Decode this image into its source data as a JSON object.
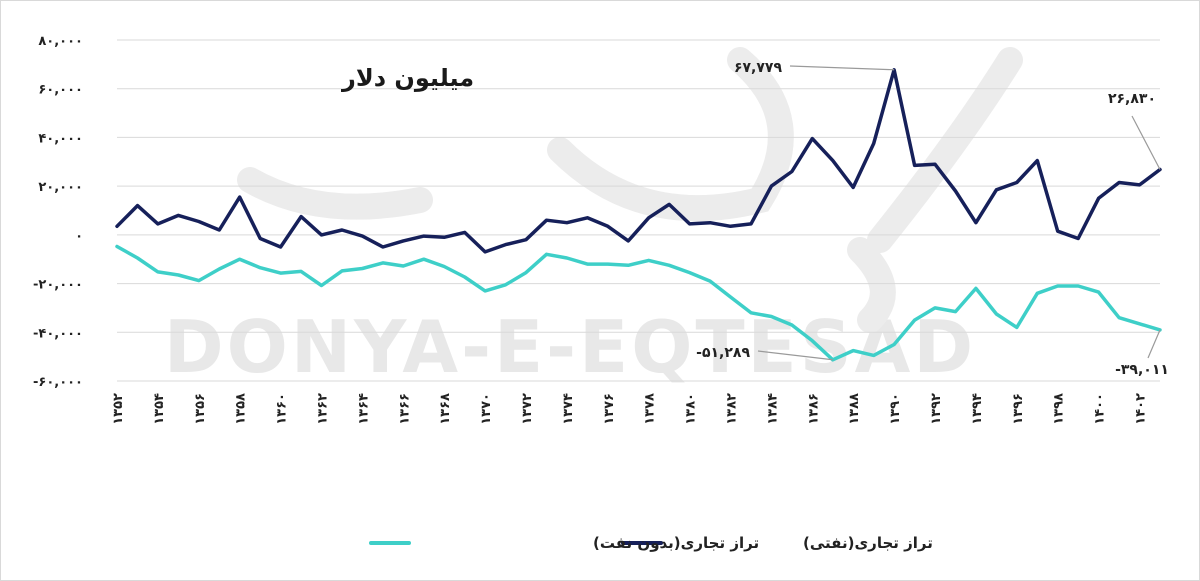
{
  "chart_data": {
    "type": "line",
    "unit_label": "میلیون دلار",
    "watermark": "DONYA-E-EQTESAD",
    "colors": {
      "non_oil": "#3ecfc8",
      "oil": "#16205a",
      "grid": "#d9d9d9",
      "axis_text": "#222222"
    },
    "ylim": [
      -60000,
      80000
    ],
    "yticks": [
      80000,
      60000,
      40000,
      20000,
      0,
      -20000,
      -40000,
      -60000
    ],
    "ytick_labels": [
      "۸۰,۰۰۰",
      "۶۰,۰۰۰",
      "۴۰,۰۰۰",
      "۲۰,۰۰۰",
      "۰",
      "-۲۰,۰۰۰",
      "-۴۰,۰۰۰",
      "-۶۰,۰۰۰"
    ],
    "x": [
      1352,
      1353,
      1354,
      1355,
      1356,
      1357,
      1358,
      1359,
      1360,
      1361,
      1362,
      1363,
      1364,
      1365,
      1366,
      1367,
      1368,
      1369,
      1370,
      1371,
      1372,
      1373,
      1374,
      1375,
      1376,
      1377,
      1378,
      1379,
      1380,
      1381,
      1382,
      1383,
      1384,
      1385,
      1386,
      1387,
      1388,
      1389,
      1390,
      1391,
      1392,
      1393,
      1394,
      1395,
      1396,
      1397,
      1398,
      1399,
      1400,
      1401,
      1402,
      1403
    ],
    "xticks": [
      1352,
      1354,
      1356,
      1358,
      1360,
      1362,
      1364,
      1366,
      1368,
      1370,
      1372,
      1374,
      1376,
      1378,
      1380,
      1382,
      1384,
      1386,
      1388,
      1390,
      1392,
      1394,
      1396,
      1398,
      1400,
      1402
    ],
    "xtick_labels": [
      "۱۳۵۲",
      "۱۳۵۴",
      "۱۳۵۶",
      "۱۳۵۸",
      "۱۳۶۰",
      "۱۳۶۲",
      "۱۳۶۴",
      "۱۳۶۶",
      "۱۳۶۸",
      "۱۳۷۰",
      "۱۳۷۲",
      "۱۳۷۴",
      "۱۳۷۶",
      "۱۳۷۸",
      "۱۳۸۰",
      "۱۳۸۲",
      "۱۳۸۴",
      "۱۳۸۶",
      "۱۳۸۸",
      "۱۳۹۰",
      "۱۳۹۲",
      "۱۳۹۴",
      "۱۳۹۶",
      "۱۳۹۸",
      "۱۴۰۰",
      "۱۴۰۲"
    ],
    "series": [
      {
        "key": "non_oil",
        "name": "تراز تجاری(بدون نفت)",
        "values": [
          -4800,
          -9500,
          -15200,
          -16500,
          -18800,
          -14000,
          -10000,
          -13500,
          -15700,
          -15000,
          -20800,
          -14800,
          -13800,
          -11500,
          -12800,
          -10000,
          -13000,
          -17300,
          -23000,
          -20500,
          -15500,
          -8000,
          -9500,
          -12000,
          -12000,
          -12500,
          -10500,
          -12500,
          -15500,
          -19000,
          -25500,
          -32000,
          -33500,
          -37000,
          -43500,
          -51289,
          -47500,
          -49500,
          -45000,
          -35000,
          -30000,
          -31500,
          -22000,
          -32500,
          -38000,
          -24000,
          -21000,
          -21000,
          -23500,
          -34000,
          -36500,
          -39011
        ]
      },
      {
        "key": "oil",
        "name": "تراز تجاری(نفتی)",
        "values": [
          3500,
          12000,
          4500,
          8000,
          5500,
          2000,
          15500,
          -1500,
          -5000,
          7500,
          0,
          2000,
          -500,
          -5000,
          -2500,
          -500,
          -1000,
          1000,
          -7000,
          -4000,
          -2000,
          6000,
          5000,
          7000,
          3500,
          -2500,
          7000,
          12500,
          4500,
          5000,
          3500,
          4500,
          20000,
          26000,
          39500,
          30500,
          19500,
          37500,
          67779,
          28500,
          29000,
          18000,
          5000,
          18500,
          21500,
          30500,
          1500,
          -1500,
          15000,
          21500,
          20500,
          26830
        ]
      }
    ],
    "annotations": [
      {
        "label": "۶۷,۷۷۹",
        "series": "oil",
        "x": 1390,
        "value": 67779
      },
      {
        "label": "۲۶,۸۳۰",
        "series": "oil",
        "x": 1403,
        "value": 26830
      },
      {
        "label": "-۵۱,۲۸۹",
        "series": "non_oil",
        "x": 1387,
        "value": -51289
      },
      {
        "label": "-۳۹,۰۱۱",
        "series": "non_oil",
        "x": 1403,
        "value": -39011
      }
    ],
    "legend": {
      "position": "bottom-center",
      "order": [
        "oil",
        "non_oil"
      ]
    },
    "grid": true
  }
}
